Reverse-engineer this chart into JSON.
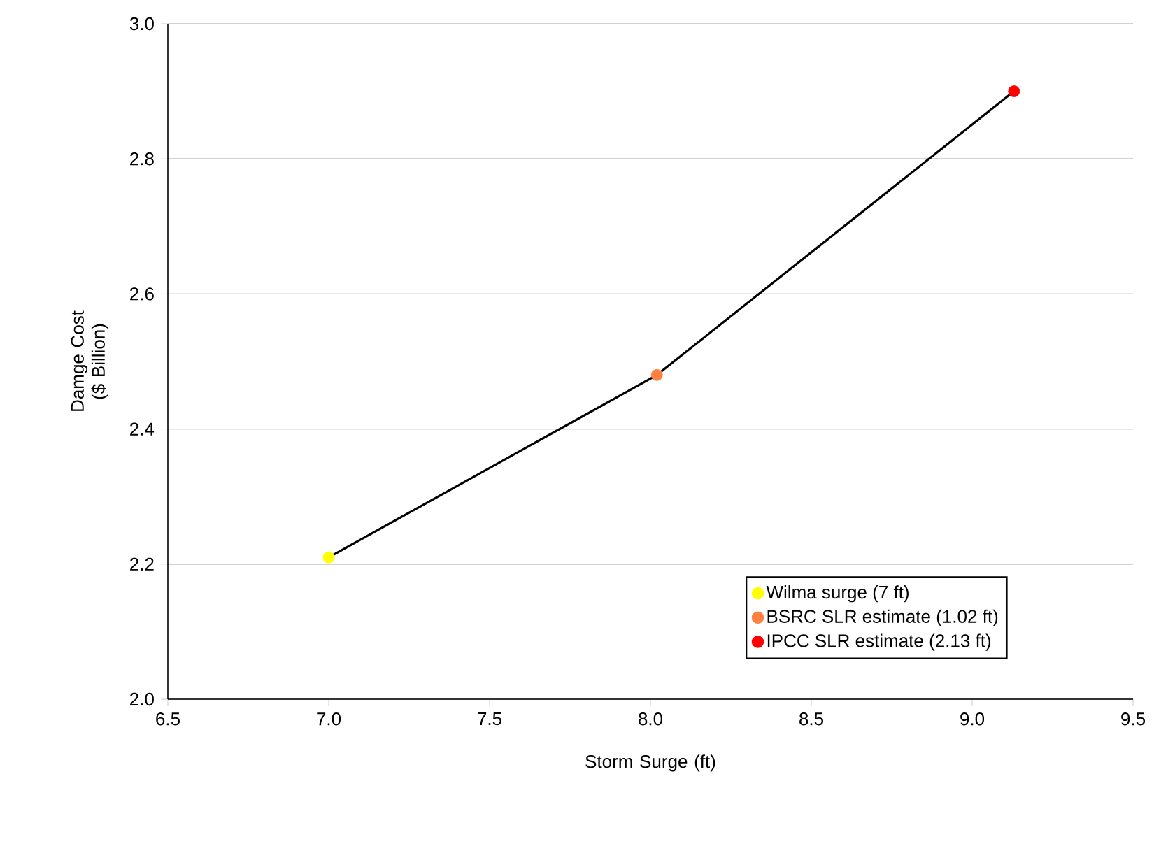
{
  "chart_data": {
    "type": "scatter",
    "xlabel": "Storm Surge (ft)",
    "ylabel": "Damge Cost ($ Billion)",
    "xlim": [
      6.5,
      9.5
    ],
    "xticks": [
      {
        "value": 6.5,
        "label": "6.5"
      },
      {
        "value": 7.0,
        "label": "7.0"
      },
      {
        "value": 7.5,
        "label": "7.5"
      },
      {
        "value": 8.0,
        "label": "8.0"
      },
      {
        "value": 8.5,
        "label": "8.5"
      },
      {
        "value": 9.0,
        "label": "9.0"
      },
      {
        "value": 9.5,
        "label": "9.5"
      }
    ],
    "ylim": [
      2.0,
      3.0
    ],
    "yticks": [
      {
        "value": 2.0,
        "label": "2.0"
      },
      {
        "value": 2.2,
        "label": "2.2"
      },
      {
        "value": 2.4,
        "label": "2.4"
      },
      {
        "value": 2.6,
        "label": "2.6"
      },
      {
        "value": 2.8,
        "label": "2.8"
      },
      {
        "value": 3.0,
        "label": "3.0"
      }
    ],
    "grid": "y",
    "legend": "bottom right",
    "series": [
      {
        "type": "line",
        "color": "#000000",
        "x": [
          7.0,
          8.02,
          9.13
        ],
        "values": [
          2.21,
          2.48,
          2.9
        ],
        "marker": "none",
        "line_style": "solid"
      },
      {
        "name": "Wilma surge (7 ft)",
        "color": "#ffff00",
        "x": [
          7.0
        ],
        "values": [
          2.21
        ],
        "marker": "circle"
      },
      {
        "name": "BSRC SLR estimate (1.02 ft)",
        "color": "#ff8040",
        "x": [
          8.02
        ],
        "values": [
          2.48
        ],
        "marker": "circle"
      },
      {
        "name": "IPCC SLR estimate (2.13 ft)",
        "color": "#ff0000",
        "x": [
          9.13
        ],
        "values": [
          2.9
        ],
        "marker": "circle"
      }
    ]
  }
}
